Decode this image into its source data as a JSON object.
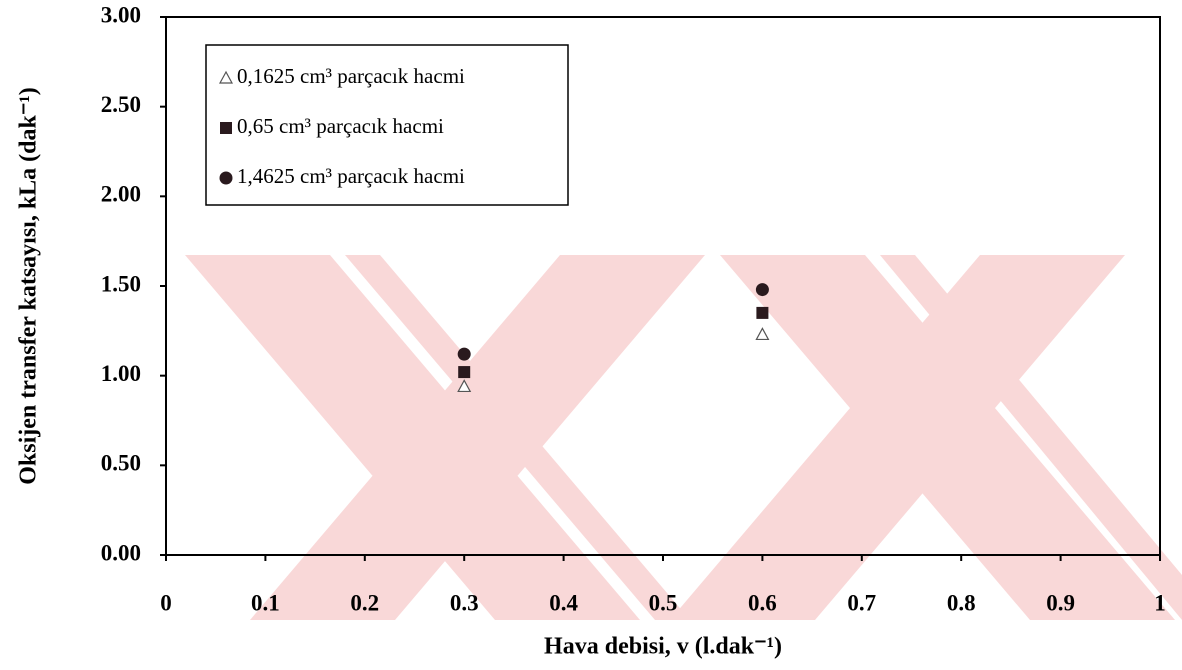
{
  "chart_data": {
    "type": "scatter",
    "x_label": "Hava debisi, v (l.dak⁻¹)",
    "y_label": "Oksijen transfer katsayısı, kLa (dak⁻¹)",
    "xlim": [
      0,
      1
    ],
    "xticks": [
      0,
      0.1,
      0.2,
      0.3,
      0.4,
      0.5,
      0.6,
      0.7,
      0.8,
      0.9,
      1
    ],
    "ylim": [
      0,
      3
    ],
    "yticks": [
      {
        "value": 0,
        "label": "0.00"
      },
      {
        "value": 0.5,
        "label": "0.50"
      },
      {
        "value": 1,
        "label": "1.00"
      },
      {
        "value": 1.5,
        "label": "1.50"
      },
      {
        "value": 2,
        "label": "2.00"
      },
      {
        "value": 2.5,
        "label": "2.50"
      },
      {
        "value": 3,
        "label": "3.00"
      }
    ],
    "legend": "upper left",
    "series": [
      {
        "name": "0,1625 cm³ parçacık hacmi",
        "marker": "triangle",
        "color": "#ffffff",
        "x": [
          0.3,
          0.6
        ],
        "values": [
          0.94,
          1.23
        ]
      },
      {
        "name": "0,65 cm³ parçacık hacmi",
        "marker": "square",
        "color": "#2a1a1e",
        "x": [
          0.3,
          0.6
        ],
        "values": [
          1.02,
          1.35
        ]
      },
      {
        "name": "1,4625 cm³ parçacık hacmi",
        "marker": "circle",
        "color": "#2a1a1e",
        "x": [
          0.3,
          0.6
        ],
        "values": [
          1.12,
          1.48
        ]
      }
    ]
  }
}
